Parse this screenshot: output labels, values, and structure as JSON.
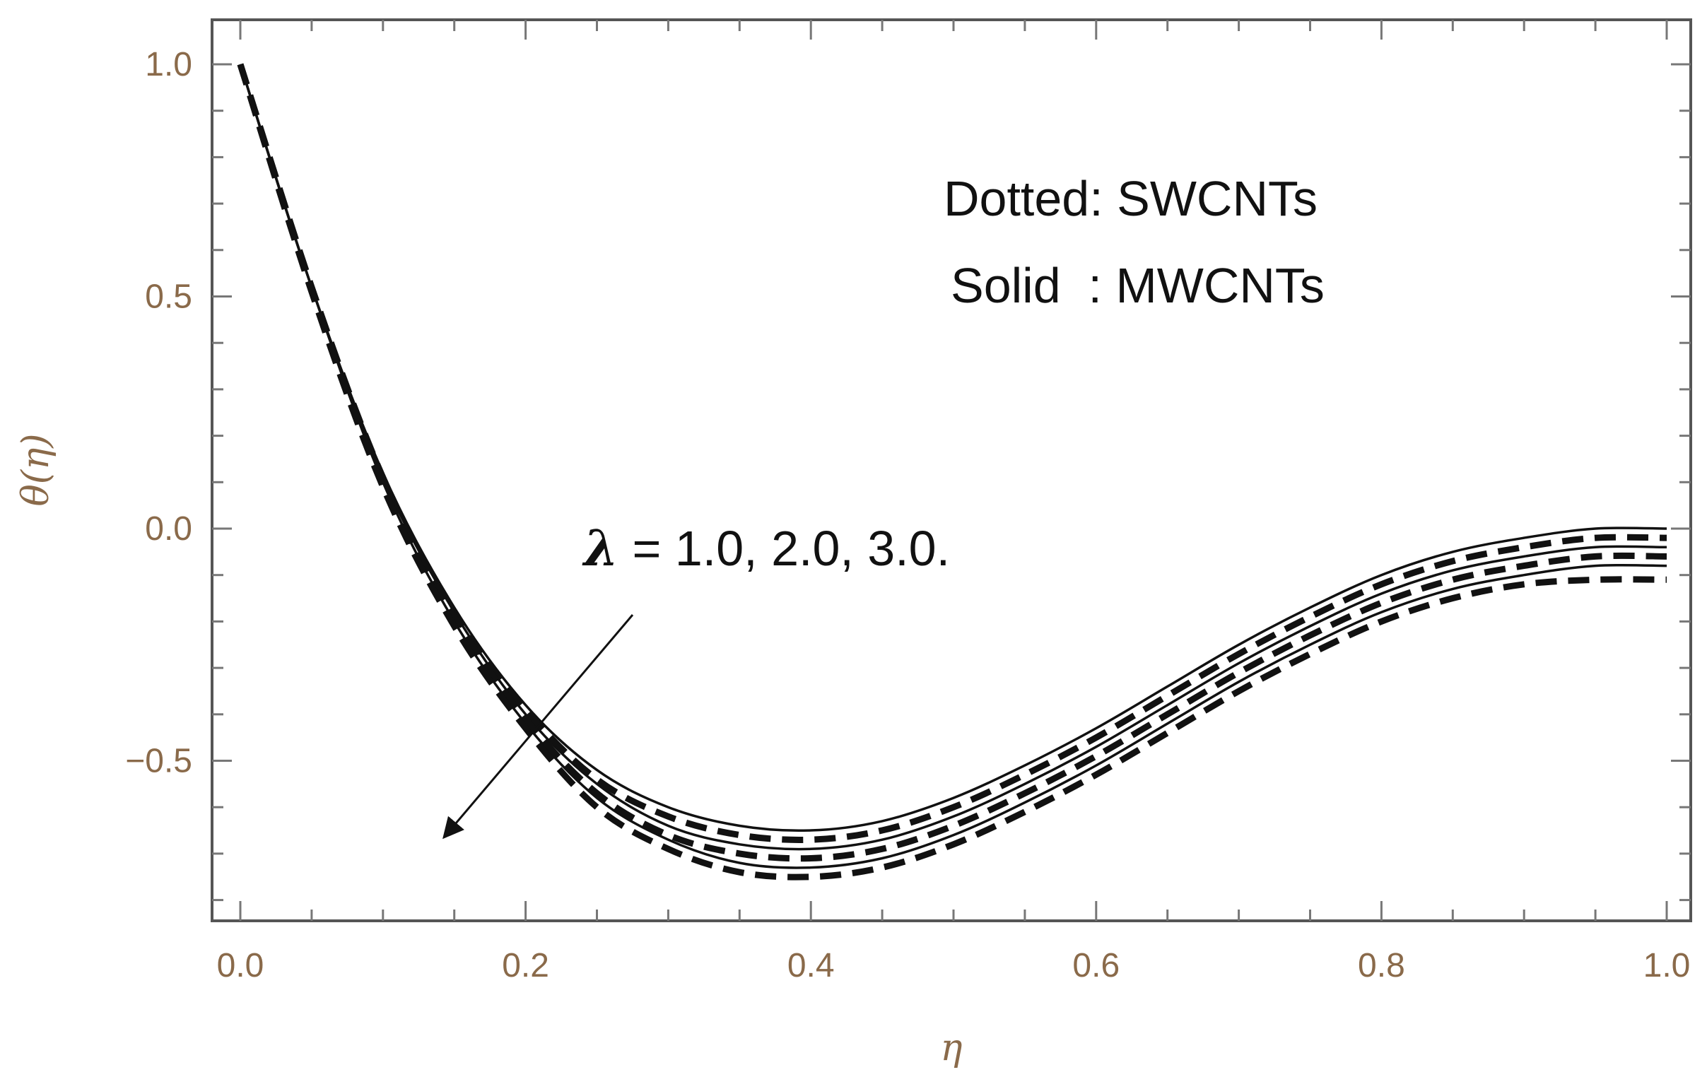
{
  "chart_data": {
    "type": "line",
    "title": "",
    "xlabel": "η",
    "ylabel": "θ(η)",
    "xlim": [
      0.0,
      1.0
    ],
    "ylim": [
      -0.85,
      1.1
    ],
    "xticks": [
      "0.0",
      "0.2",
      "0.4",
      "0.6",
      "0.8",
      "1.0"
    ],
    "yticks": [
      "1.0",
      "0.5",
      "0.0",
      "−0.5"
    ],
    "grid": false,
    "legend": {
      "position": "top-right",
      "entries": [
        "Dotted: SWCNTs",
        "Solid  : MWCNTs"
      ]
    },
    "annotation": {
      "symbol": "λ",
      "text": "= 1.0, 2.0, 3.0."
    },
    "x": [
      0.0,
      0.05,
      0.1,
      0.15,
      0.2,
      0.25,
      0.3,
      0.35,
      0.4,
      0.45,
      0.5,
      0.55,
      0.6,
      0.65,
      0.7,
      0.75,
      0.8,
      0.85,
      0.9,
      0.95,
      1.0
    ],
    "series": [
      {
        "lambda": 1.0,
        "style": "solid",
        "values": [
          1.0,
          0.52,
          0.12,
          -0.17,
          -0.38,
          -0.52,
          -0.6,
          -0.64,
          -0.65,
          -0.63,
          -0.58,
          -0.51,
          -0.43,
          -0.34,
          -0.25,
          -0.17,
          -0.1,
          -0.05,
          -0.02,
          0.0,
          0.0
        ]
      },
      {
        "lambda": 2.0,
        "style": "solid",
        "values": [
          1.0,
          0.52,
          0.11,
          -0.18,
          -0.4,
          -0.55,
          -0.64,
          -0.68,
          -0.69,
          -0.67,
          -0.62,
          -0.55,
          -0.47,
          -0.38,
          -0.29,
          -0.21,
          -0.14,
          -0.09,
          -0.06,
          -0.04,
          -0.04
        ]
      },
      {
        "lambda": 3.0,
        "style": "solid",
        "values": [
          1.0,
          0.52,
          0.1,
          -0.2,
          -0.42,
          -0.58,
          -0.67,
          -0.72,
          -0.73,
          -0.71,
          -0.66,
          -0.59,
          -0.51,
          -0.42,
          -0.33,
          -0.25,
          -0.18,
          -0.13,
          -0.1,
          -0.08,
          -0.08
        ]
      },
      {
        "lambda": 1.0,
        "style": "dotted",
        "values": [
          1.0,
          0.52,
          0.11,
          -0.18,
          -0.39,
          -0.54,
          -0.62,
          -0.66,
          -0.67,
          -0.65,
          -0.6,
          -0.53,
          -0.45,
          -0.36,
          -0.27,
          -0.19,
          -0.12,
          -0.07,
          -0.04,
          -0.02,
          -0.02
        ]
      },
      {
        "lambda": 2.0,
        "style": "dotted",
        "values": [
          1.0,
          0.52,
          0.1,
          -0.19,
          -0.41,
          -0.57,
          -0.66,
          -0.7,
          -0.71,
          -0.69,
          -0.64,
          -0.57,
          -0.49,
          -0.4,
          -0.31,
          -0.23,
          -0.16,
          -0.11,
          -0.08,
          -0.06,
          -0.06
        ]
      },
      {
        "lambda": 3.0,
        "style": "dotted",
        "values": [
          1.0,
          0.51,
          0.09,
          -0.21,
          -0.43,
          -0.6,
          -0.69,
          -0.74,
          -0.75,
          -0.73,
          -0.68,
          -0.61,
          -0.53,
          -0.44,
          -0.35,
          -0.27,
          -0.2,
          -0.15,
          -0.12,
          -0.11,
          -0.11
        ]
      }
    ]
  }
}
